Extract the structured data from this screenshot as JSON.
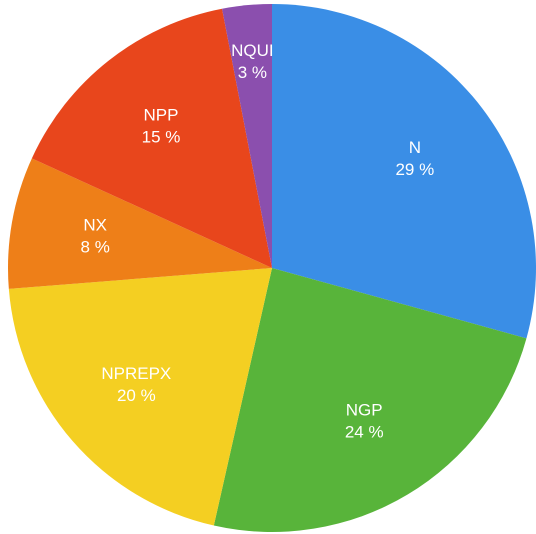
{
  "chart_data": {
    "type": "pie",
    "categories": [
      "N",
      "NGP",
      "NPREPX",
      "NX",
      "NPP",
      "NQUI"
    ],
    "values": [
      29,
      24,
      20,
      8,
      15,
      3
    ],
    "value_labels": [
      "29 %",
      "24 %",
      "20 %",
      "8 %",
      "15 %",
      "3 %"
    ],
    "colors": [
      "#3a8ee6",
      "#58b43a",
      "#f4cf22",
      "#ee7f18",
      "#e8461c",
      "#8b4fae"
    ]
  }
}
